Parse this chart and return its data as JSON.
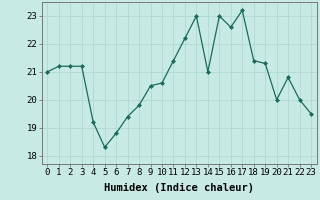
{
  "x": [
    0,
    1,
    2,
    3,
    4,
    5,
    6,
    7,
    8,
    9,
    10,
    11,
    12,
    13,
    14,
    15,
    16,
    17,
    18,
    19,
    20,
    21,
    22,
    23
  ],
  "y": [
    21.0,
    21.2,
    21.2,
    21.2,
    19.2,
    18.3,
    18.8,
    19.4,
    19.8,
    20.5,
    20.6,
    21.4,
    22.2,
    23.0,
    21.0,
    23.0,
    22.6,
    23.2,
    21.4,
    21.3,
    20.0,
    20.8,
    20.0,
    19.5
  ],
  "line_color": "#1a6b5a",
  "marker": "D",
  "marker_size": 2,
  "bg_color": "#c8eae4",
  "grid_color": "#b0d8d0",
  "xlabel": "Humidex (Indice chaleur)",
  "ylim": [
    17.7,
    23.5
  ],
  "xlim": [
    -0.5,
    23.5
  ],
  "yticks": [
    18,
    19,
    20,
    21,
    22,
    23
  ],
  "xticks": [
    0,
    1,
    2,
    3,
    4,
    5,
    6,
    7,
    8,
    9,
    10,
    11,
    12,
    13,
    14,
    15,
    16,
    17,
    18,
    19,
    20,
    21,
    22,
    23
  ],
  "xlabel_fontsize": 7.5,
  "tick_fontsize": 6.5
}
